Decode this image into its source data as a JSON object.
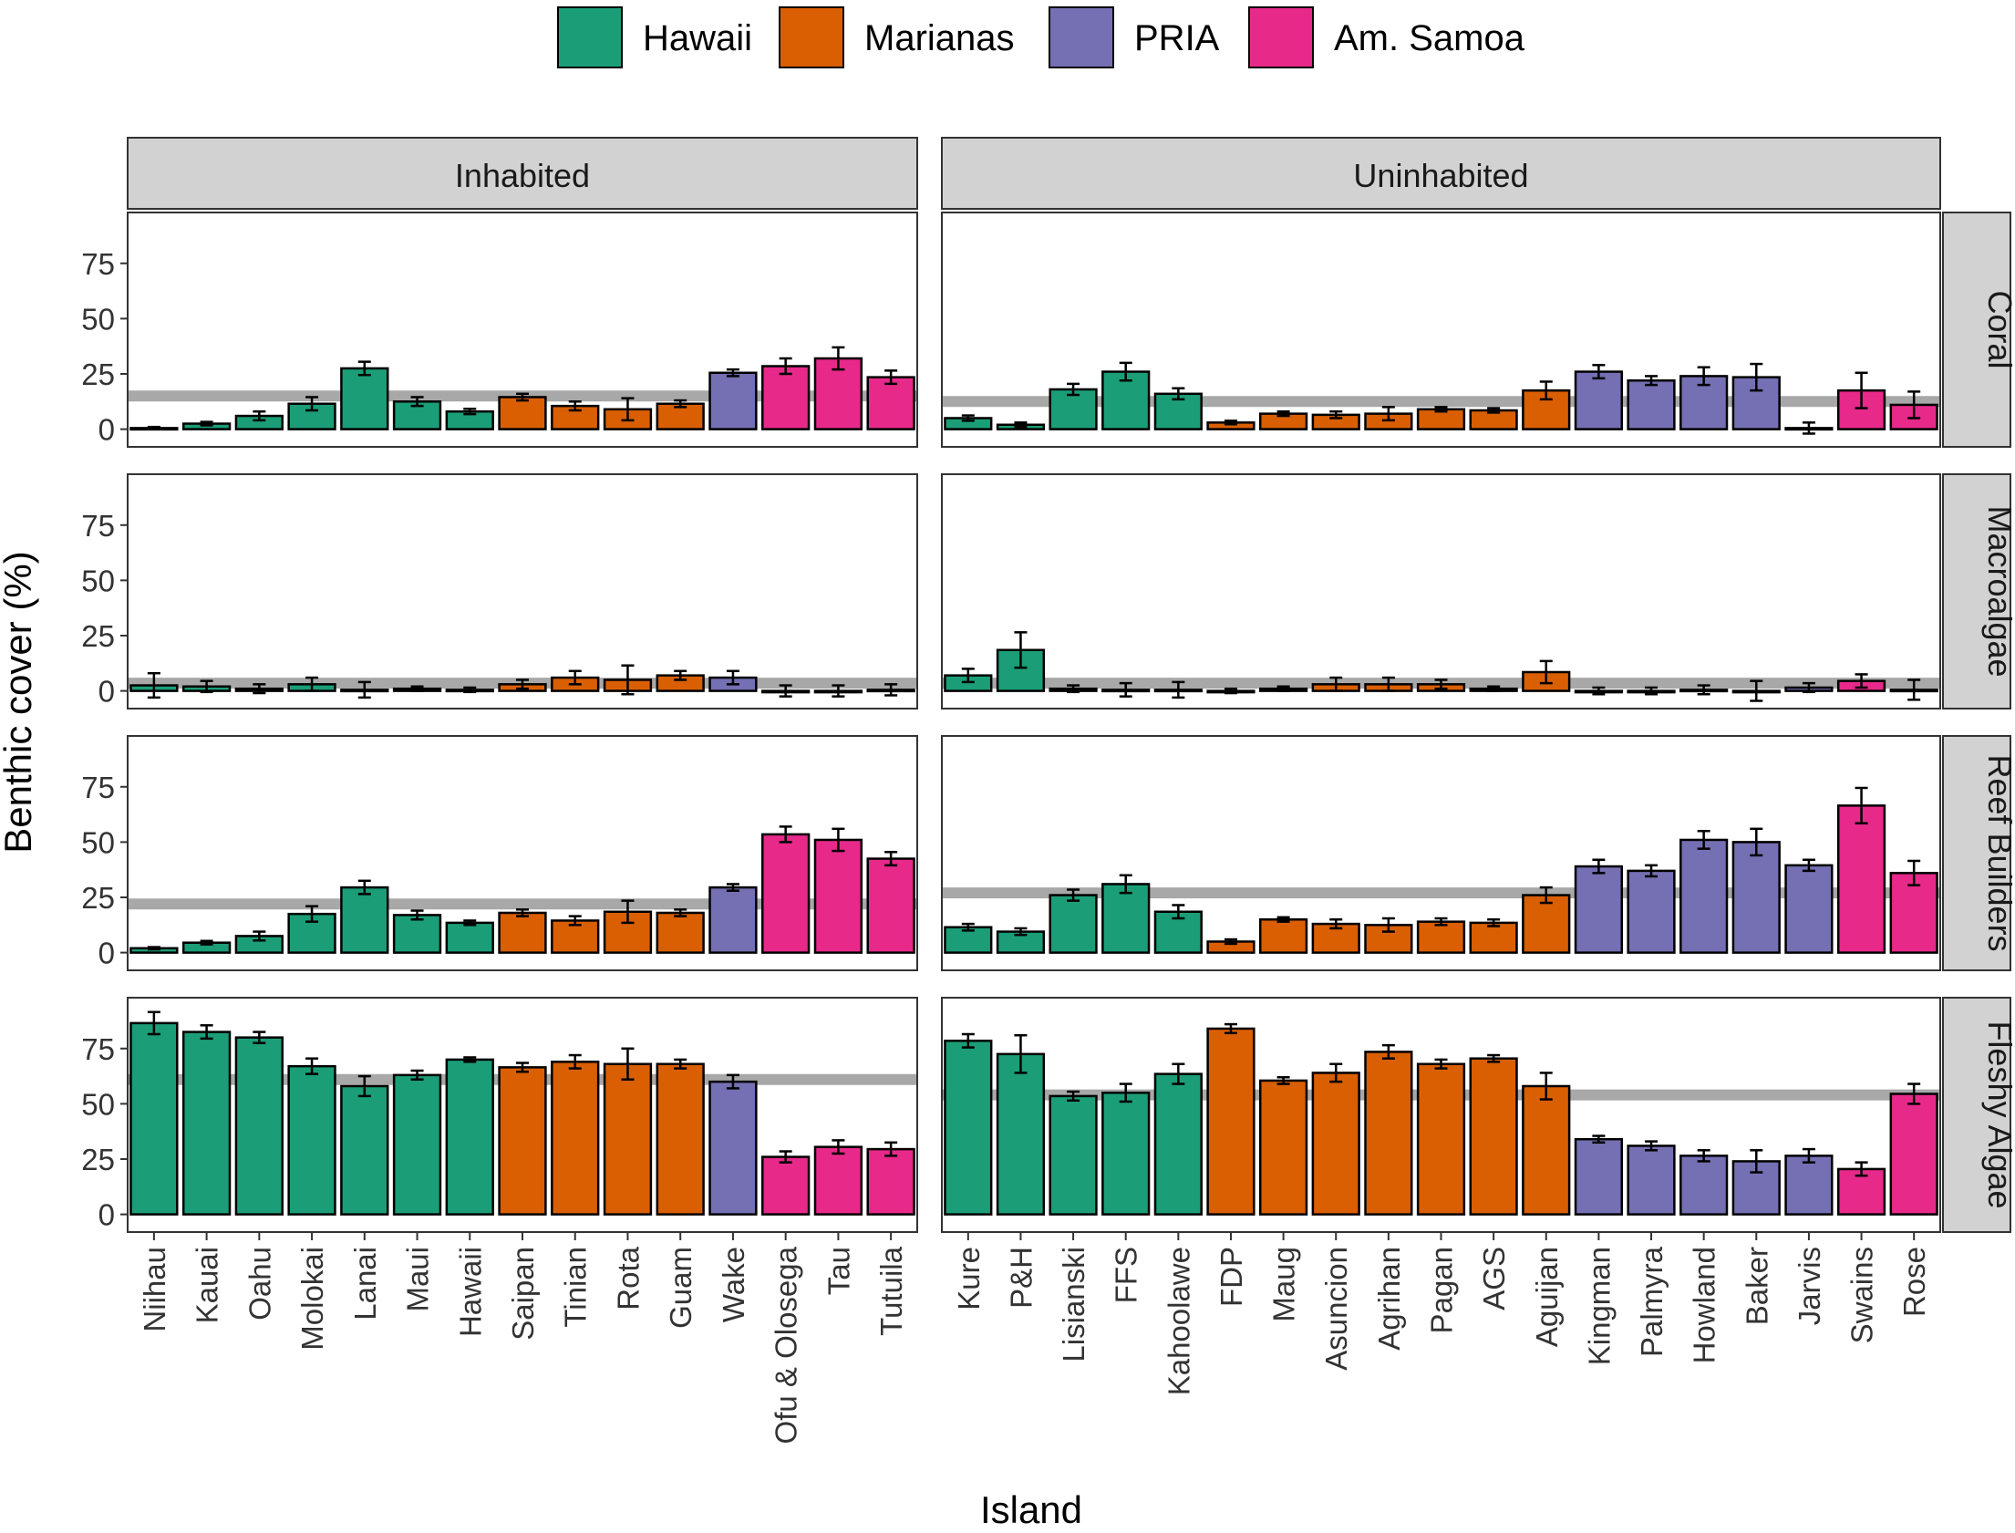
{
  "chart_data": {
    "type": "bar",
    "xlabel": "Island",
    "ylabel": "Benthic cover (%)",
    "ylim": [
      -8,
      98
    ],
    "yticks": [
      0,
      25,
      50,
      75
    ],
    "legend": {
      "placement": "top-center",
      "entries": [
        {
          "region": "Hawaii",
          "label": "Hawaii",
          "color": "#1b9e77"
        },
        {
          "region": "Marianas",
          "label": "Marianas",
          "color": "#d95f02"
        },
        {
          "region": "PRIA",
          "label": "PRIA",
          "color": "#7570b3"
        },
        {
          "region": "AmSamoa",
          "label": "Am. Samoa",
          "color": "#e7298a"
        }
      ]
    },
    "reference_line_color": "#a8a8a8",
    "columns": [
      {
        "label": "Inhabited",
        "islands": [
          {
            "name": "Niihau",
            "region": "Hawaii"
          },
          {
            "name": "Kauai",
            "region": "Hawaii"
          },
          {
            "name": "Oahu",
            "region": "Hawaii"
          },
          {
            "name": "Molokai",
            "region": "Hawaii"
          },
          {
            "name": "Lanai",
            "region": "Hawaii"
          },
          {
            "name": "Maui",
            "region": "Hawaii"
          },
          {
            "name": "Hawaii",
            "region": "Hawaii"
          },
          {
            "name": "Saipan",
            "region": "Marianas"
          },
          {
            "name": "Tinian",
            "region": "Marianas"
          },
          {
            "name": "Rota",
            "region": "Marianas"
          },
          {
            "name": "Guam",
            "region": "Marianas"
          },
          {
            "name": "Wake",
            "region": "PRIA"
          },
          {
            "name": "Ofu & Olosega",
            "region": "AmSamoa"
          },
          {
            "name": "Tau",
            "region": "AmSamoa"
          },
          {
            "name": "Tutuila",
            "region": "AmSamoa"
          }
        ]
      },
      {
        "label": "Uninhabited",
        "islands": [
          {
            "name": "Kure",
            "region": "Hawaii"
          },
          {
            "name": "P&H",
            "region": "Hawaii"
          },
          {
            "name": "Lisianski",
            "region": "Hawaii"
          },
          {
            "name": "FFS",
            "region": "Hawaii"
          },
          {
            "name": "Kahoolawe",
            "region": "Hawaii"
          },
          {
            "name": "FDP",
            "region": "Marianas"
          },
          {
            "name": "Maug",
            "region": "Marianas"
          },
          {
            "name": "Asuncion",
            "region": "Marianas"
          },
          {
            "name": "Agrihan",
            "region": "Marianas"
          },
          {
            "name": "Pagan",
            "region": "Marianas"
          },
          {
            "name": "AGS",
            "region": "Marianas"
          },
          {
            "name": "Aguijan",
            "region": "Marianas"
          },
          {
            "name": "Kingman",
            "region": "PRIA"
          },
          {
            "name": "Palmyra",
            "region": "PRIA"
          },
          {
            "name": "Howland",
            "region": "PRIA"
          },
          {
            "name": "Baker",
            "region": "PRIA"
          },
          {
            "name": "Jarvis",
            "region": "PRIA"
          },
          {
            "name": "Swains",
            "region": "AmSamoa"
          },
          {
            "name": "Rose",
            "region": "AmSamoa"
          }
        ]
      }
    ],
    "rows": [
      {
        "label": "Coral",
        "panels": [
          {
            "reference": 15,
            "values": [
              0.5,
              2.5,
              6,
              11.5,
              27.5,
              12.5,
              8,
              14.5,
              10.5,
              9,
              11.5,
              25.5,
              28.5,
              32,
              23.5
            ],
            "errors": [
              0.5,
              0.8,
              2,
              3,
              3,
              2,
              1.2,
              1.5,
              2,
              5,
              1.5,
              1.5,
              3.5,
              5,
              3
            ]
          },
          {
            "reference": 12.5,
            "values": [
              5,
              2,
              18,
              26,
              16,
              3,
              7,
              6.5,
              7,
              9,
              8.5,
              17.5,
              26,
              22,
              24,
              23.5,
              0.5,
              17.5,
              11
            ],
            "errors": [
              1.2,
              1,
              2.5,
              4,
              2.5,
              0.8,
              1,
              1.5,
              3,
              1,
              1,
              4,
              3,
              2,
              4,
              6,
              2.5,
              8,
              6
            ]
          }
        ]
      },
      {
        "label": "Macroalgae",
        "panels": [
          {
            "reference": 3.5,
            "values": [
              2.5,
              2,
              1,
              3,
              0.5,
              1,
              0.5,
              3,
              6,
              5,
              7,
              6,
              0,
              0,
              0.5
            ],
            "errors": [
              5.5,
              2.5,
              2,
              3,
              3.5,
              1,
              1,
              2,
              3,
              6.5,
              2,
              3,
              2.5,
              2.5,
              2.5
            ]
          },
          {
            "reference": 3.5,
            "values": [
              7,
              18.5,
              1,
              0.5,
              0.5,
              0,
              1,
              3,
              3,
              3,
              1,
              8.5,
              0,
              0,
              0.5,
              0,
              1.5,
              4.5,
              0.5
            ],
            "errors": [
              3,
              8,
              1.5,
              3,
              3.5,
              1,
              1,
              3,
              3,
              2,
              1,
              5,
              1.5,
              1.5,
              2,
              4.5,
              2,
              3,
              4.5
            ]
          }
        ]
      },
      {
        "label": "Reef Builders",
        "panels": [
          {
            "reference": 22,
            "values": [
              2,
              4.5,
              7.5,
              17.5,
              29.5,
              17,
              13.5,
              18,
              14.5,
              18.5,
              18,
              29.5,
              53.5,
              51,
              42.5
            ],
            "errors": [
              0.5,
              0.8,
              2,
              3.5,
              3,
              2,
              1,
              1.5,
              2,
              5,
              1.5,
              1.5,
              3.5,
              5,
              3
            ]
          },
          {
            "reference": 27,
            "values": [
              11.5,
              9.5,
              26,
              31,
              18.5,
              5,
              15,
              13,
              12.5,
              14,
              13.5,
              26,
              39,
              37,
              51,
              50,
              39.5,
              66.5,
              36
            ],
            "errors": [
              1.5,
              1.5,
              2.5,
              4,
              3,
              1,
              1,
              2,
              3,
              1.5,
              1.5,
              3.5,
              3,
              2.5,
              4,
              6,
              2.5,
              8,
              5.5
            ]
          }
        ]
      },
      {
        "label": "Fleshy Algae",
        "panels": [
          {
            "reference": 61,
            "values": [
              86.5,
              82.5,
              80,
              67,
              58,
              63,
              70,
              66.5,
              69,
              68,
              68,
              60,
              26,
              30.5,
              29.5
            ],
            "errors": [
              5,
              3,
              2.5,
              3.5,
              4.5,
              2,
              1,
              2,
              3,
              7,
              2,
              3,
              2.5,
              3,
              3
            ]
          },
          {
            "reference": 54,
            "values": [
              78.5,
              72.5,
              53.5,
              55,
              63.5,
              84,
              60.5,
              64,
              73.5,
              68,
              70.5,
              58,
              34,
              31,
              26.5,
              24,
              26.5,
              20.5,
              54.5
            ],
            "errors": [
              3,
              8.5,
              2,
              4,
              4.5,
              2,
              1.5,
              4,
              3,
              2,
              1.5,
              6,
              1.5,
              2,
              2.5,
              5,
              3,
              3,
              4.5
            ]
          }
        ]
      }
    ]
  }
}
